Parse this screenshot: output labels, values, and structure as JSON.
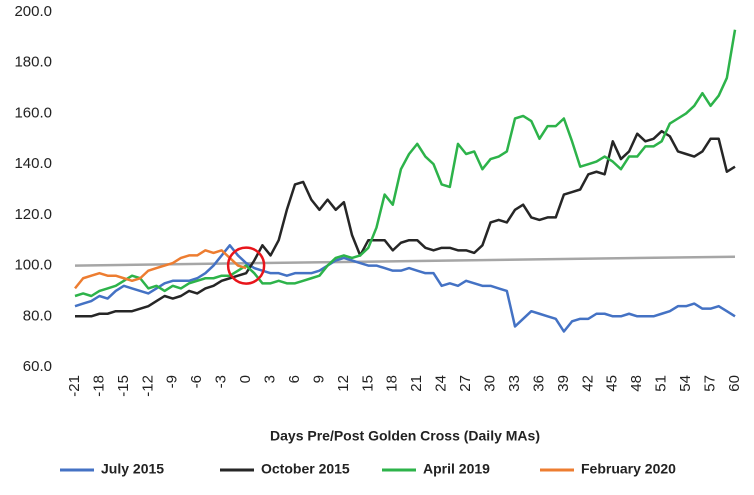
{
  "chart_data": {
    "type": "line",
    "x_label": "Days Pre/Post Golden Cross (Daily MAs)",
    "x": [
      -21,
      -20,
      -19,
      -18,
      -17,
      -16,
      -15,
      -14,
      -13,
      -12,
      -11,
      -10,
      -9,
      -8,
      -7,
      -6,
      -5,
      -4,
      -3,
      -2,
      -1,
      0,
      1,
      2,
      3,
      4,
      5,
      6,
      7,
      8,
      9,
      10,
      11,
      12,
      13,
      14,
      15,
      16,
      17,
      18,
      19,
      20,
      21,
      22,
      23,
      24,
      25,
      26,
      27,
      28,
      29,
      30,
      31,
      32,
      33,
      34,
      35,
      36,
      37,
      38,
      39,
      40,
      41,
      42,
      43,
      44,
      45,
      46,
      47,
      48,
      49,
      50,
      51,
      52,
      53,
      54,
      55,
      56,
      57,
      58,
      59,
      60
    ],
    "xlim": [
      -21,
      60
    ],
    "xticks": [
      -21,
      -18,
      -15,
      -12,
      -9,
      -6,
      -3,
      0,
      3,
      6,
      9,
      12,
      15,
      18,
      21,
      24,
      27,
      30,
      33,
      36,
      39,
      42,
      45,
      48,
      51,
      54,
      57,
      60
    ],
    "ylim": [
      60,
      200
    ],
    "yticks": [
      {
        "value": 60,
        "label": "60.0"
      },
      {
        "value": 80,
        "label": "80.0"
      },
      {
        "value": 100,
        "label": "100.0"
      },
      {
        "value": 120,
        "label": "120.0"
      },
      {
        "value": 140,
        "label": "140.0"
      },
      {
        "value": 160,
        "label": "160.0"
      },
      {
        "value": 180,
        "label": "180.0"
      },
      {
        "value": 200,
        "label": "200.0"
      }
    ],
    "grid": false,
    "legend": "bottom",
    "series": [
      {
        "name": "July 2015",
        "color": "#4472c4",
        "values": [
          84,
          85,
          86,
          88,
          87,
          90,
          92,
          91,
          90,
          89,
          91,
          93,
          94,
          94,
          94,
          95,
          97,
          100,
          104,
          108,
          104,
          101,
          99,
          98,
          97,
          97,
          96,
          97,
          97,
          97,
          98,
          100,
          102,
          103,
          102,
          101,
          100,
          100,
          99,
          98,
          98,
          99,
          98,
          97,
          97,
          92,
          93,
          92,
          94,
          93,
          92,
          92,
          91,
          90,
          76,
          79,
          82,
          81,
          80,
          79,
          74,
          78,
          79,
          79,
          81,
          81,
          80,
          80,
          81,
          80,
          80,
          80,
          81,
          82,
          84,
          84,
          85,
          83,
          83,
          84,
          82,
          80
        ]
      },
      {
        "name": "October 2015",
        "color": "#262626",
        "values": [
          80,
          80,
          80,
          81,
          81,
          82,
          82,
          82,
          83,
          84,
          86,
          88,
          87,
          88,
          90,
          89,
          91,
          92,
          94,
          95,
          96,
          97,
          102,
          108,
          104,
          110,
          122,
          132,
          133,
          126,
          122,
          126,
          122,
          125,
          112,
          104,
          110,
          110,
          110,
          106,
          109,
          110,
          110,
          107,
          106,
          107,
          107,
          106,
          106,
          105,
          108,
          117,
          118,
          117,
          122,
          124,
          119,
          118,
          119,
          119,
          128,
          129,
          130,
          136,
          137,
          136,
          149,
          142,
          145,
          152,
          149,
          150,
          153,
          151,
          145,
          144,
          143,
          145,
          150,
          150,
          137,
          139
        ]
      },
      {
        "name": "April 2019",
        "color": "#2db34a",
        "values": [
          88,
          89,
          88,
          90,
          91,
          92,
          94,
          96,
          95,
          91,
          92,
          90,
          92,
          91,
          93,
          94,
          95,
          95,
          96,
          96,
          98,
          100,
          97,
          93,
          93,
          94,
          93,
          93,
          94,
          95,
          96,
          100,
          103,
          104,
          103,
          104,
          107,
          115,
          128,
          124,
          138,
          144,
          148,
          143,
          140,
          132,
          131,
          148,
          144,
          145,
          138,
          142,
          143,
          145,
          158,
          159,
          157,
          150,
          155,
          155,
          158,
          149,
          139,
          140,
          141,
          143,
          141,
          138,
          143,
          143,
          147,
          147,
          149,
          156,
          158,
          160,
          163,
          168,
          163,
          167,
          174,
          193
        ]
      },
      {
        "name": "February 2020",
        "color": "#ed7d31",
        "values": [
          91,
          95,
          96,
          97,
          96,
          96,
          95,
          94,
          95,
          98,
          99,
          100,
          101,
          103,
          104,
          104,
          106,
          105,
          106,
          103,
          100,
          99,
          null,
          null,
          null,
          null,
          null,
          null,
          null,
          null,
          null,
          null,
          null,
          null,
          null,
          null,
          null,
          null,
          null,
          null,
          null,
          null,
          null,
          null,
          null,
          null,
          null,
          null,
          null,
          null,
          null,
          null,
          null,
          null,
          null,
          null,
          null,
          null,
          null,
          null,
          null,
          null,
          null,
          null,
          null,
          null,
          null,
          null,
          null,
          null,
          null,
          null,
          null,
          null,
          null,
          null,
          null,
          null,
          null,
          null,
          null,
          null
        ]
      }
    ],
    "reference_line": {
      "color": "#a6a6a6",
      "x": [
        -21,
        60
      ],
      "y": [
        100,
        103.5
      ]
    },
    "highlight": {
      "color": "#e8151b",
      "x": 0,
      "y": 100
    }
  }
}
